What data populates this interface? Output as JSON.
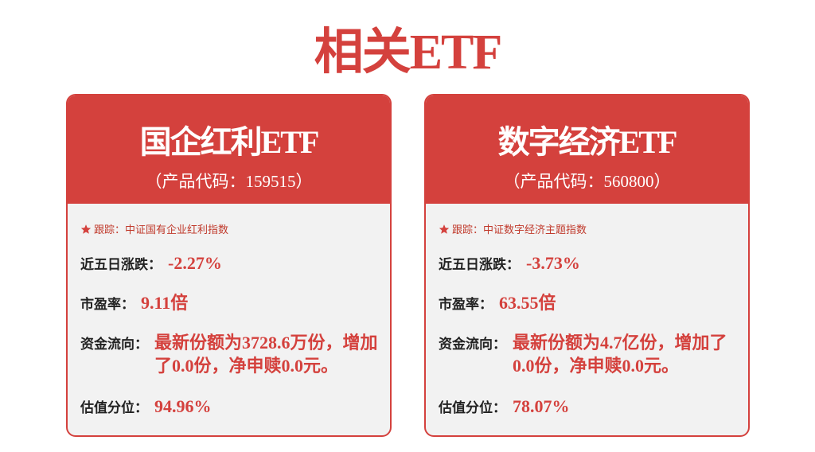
{
  "header": {
    "title": "相关ETF"
  },
  "cards": [
    {
      "name": "国企红利ETF",
      "code": "（产品代码：159515）",
      "track": "跟踪：中证国有企业红利指数",
      "rows": [
        {
          "label": "近五日涨跌：",
          "value": "-2.27%"
        },
        {
          "label": "市盈率：",
          "value": "9.11倍"
        },
        {
          "label": "资金流向：",
          "value": "最新份额为3728.6万份，增加了0.0份，净申赎0.0元。"
        },
        {
          "label": "估值分位：",
          "value": "94.96%"
        }
      ]
    },
    {
      "name": "数字经济ETF",
      "code": "（产品代码：560800）",
      "track": "跟踪：中证数字经济主题指数",
      "rows": [
        {
          "label": "近五日涨跌：",
          "value": "-3.73%"
        },
        {
          "label": "市盈率：",
          "value": "63.55倍"
        },
        {
          "label": "资金流向：",
          "value": "最新份额为4.7亿份，增加了0.0份，净申赎0.0元。"
        },
        {
          "label": "估值分位：",
          "value": "78.07%"
        }
      ]
    }
  ]
}
